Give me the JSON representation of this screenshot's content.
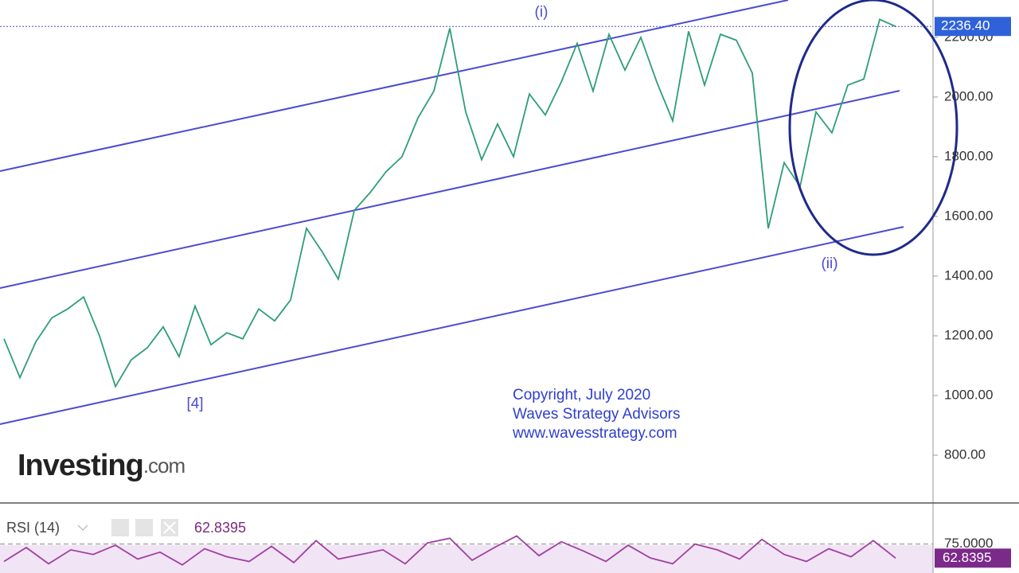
{
  "chart_data": [
    {
      "type": "line",
      "series": [
        {
          "color": "#2e9e74",
          "values": [
            1190,
            1060,
            1180,
            1260,
            1290,
            1330,
            1200,
            1030,
            1120,
            1160,
            1230,
            1130,
            1300,
            1170,
            1210,
            1190,
            1290,
            1250,
            1320,
            1560,
            1480,
            1390,
            1620,
            1680,
            1750,
            1800,
            1930,
            2020,
            2230,
            1950,
            1790,
            1910,
            1800,
            2010,
            1940,
            2050,
            2180,
            2020,
            2210,
            2090,
            2200,
            2050,
            1920,
            2220,
            2040,
            2210,
            2190,
            2080,
            1560,
            1780,
            1700,
            1950,
            1880,
            2040,
            2060,
            2260,
            2236.4
          ]
        }
      ],
      "ylim": [
        640,
        2325
      ],
      "yticks": [
        {
          "value": 800,
          "label": "800.00"
        },
        {
          "value": 1000,
          "label": "1000.00"
        },
        {
          "value": 1200,
          "label": "1200.00"
        },
        {
          "value": 1400,
          "label": "1400.00"
        },
        {
          "value": 1600,
          "label": "1600.00"
        },
        {
          "value": 1800,
          "label": "1800.00"
        },
        {
          "value": 2000,
          "label": "2000.00"
        },
        {
          "value": 2200,
          "label": "2200.00"
        }
      ],
      "last_price": {
        "value": 2236.4,
        "label": "2236.40"
      },
      "annotations": [
        "(i)",
        "(ii)",
        "[4]"
      ],
      "watermark": [
        "Copyright, July 2020",
        "Waves Strategy Advisors",
        "www.wavesstrategy.com"
      ],
      "logo": "Investing",
      "logo_suffix": ".com"
    },
    {
      "type": "line",
      "title": "RSI (14)",
      "series": [
        {
          "color": "#a040a0",
          "values": [
            60,
            72,
            58,
            70,
            66,
            74,
            62,
            68,
            57,
            71,
            64,
            60,
            73,
            59,
            78,
            62,
            66,
            70,
            58,
            76,
            80,
            61,
            72,
            82,
            65,
            77,
            69,
            60,
            74,
            63,
            58,
            75,
            70,
            62,
            79,
            66,
            60,
            71,
            64,
            78,
            62.8395
          ]
        }
      ],
      "ylim": [
        50,
        105
      ],
      "yticks": [
        {
          "value": 75,
          "label": "75.0000"
        }
      ],
      "last_value": {
        "value": 62.8395,
        "label": "62.8395"
      }
    }
  ]
}
